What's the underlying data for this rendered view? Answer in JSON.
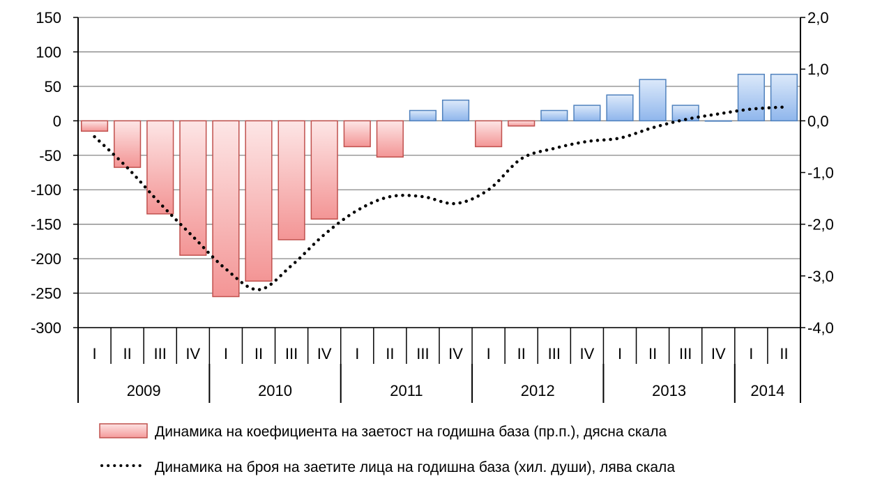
{
  "chart_data": {
    "type": "bar",
    "quarters": [
      "I",
      "II",
      "III",
      "IV",
      "I",
      "II",
      "III",
      "IV",
      "I",
      "II",
      "III",
      "IV",
      "I",
      "II",
      "III",
      "IV",
      "I",
      "II",
      "III",
      "IV",
      "I",
      "II"
    ],
    "years": [
      {
        "label": "2009",
        "quarters": 4
      },
      {
        "label": "2010",
        "quarters": 4
      },
      {
        "label": "2011",
        "quarters": 4
      },
      {
        "label": "2012",
        "quarters": 4
      },
      {
        "label": "2013",
        "quarters": 4
      },
      {
        "label": "2014",
        "quarters": 2
      }
    ],
    "series": [
      {
        "name": "Динамика на коефициента на заетост на годишна база (пр.п.), дясна скала",
        "type": "bar",
        "axis": "right",
        "values": [
          -0.2,
          -0.9,
          -1.8,
          -2.6,
          -3.4,
          -3.1,
          -2.3,
          -1.9,
          -0.5,
          -0.7,
          0.2,
          0.4,
          -0.5,
          -0.1,
          0.2,
          0.3,
          0.5,
          0.8,
          0.3,
          0.0,
          0.9,
          0.9
        ],
        "negative_color": "#f8a8a8",
        "positive_color": "#a8c8f0"
      },
      {
        "name": "Динамика на броя на заетите лица на годишна база (хил. души), лява скала",
        "type": "line",
        "style": "dotted",
        "axis": "left",
        "values": [
          -23,
          -68,
          -120,
          -168,
          -215,
          -245,
          -210,
          -165,
          -130,
          -110,
          -110,
          -120,
          -100,
          -55,
          -40,
          -30,
          -25,
          -10,
          2,
          10,
          17,
          20
        ],
        "color": "#000000"
      }
    ],
    "left_axis": {
      "ylim": [
        -300,
        150
      ],
      "ticks": [
        "150",
        "100",
        "50",
        "0",
        "-50",
        "-100",
        "-150",
        "-200",
        "-250",
        "-300"
      ]
    },
    "right_axis": {
      "ylim": [
        -4.0,
        2.0
      ],
      "ticks": [
        "2,0",
        "1,0",
        "0,0",
        "-1,0",
        "-2,0",
        "-3,0",
        "-4,0"
      ]
    },
    "grid": true,
    "legend_position": "bottom"
  }
}
